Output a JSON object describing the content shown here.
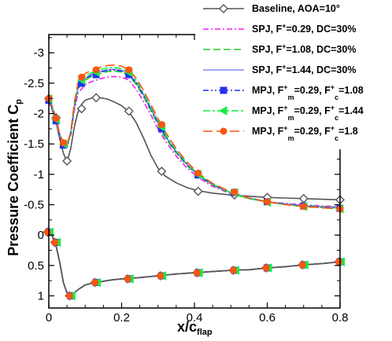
{
  "chart_data": {
    "type": "line",
    "title": "",
    "xlabel": {
      "base": "x/c",
      "sub": "flap"
    },
    "ylabel": {
      "base": "Pressure Coefficient  C",
      "sub": "p"
    },
    "xlim": [
      0,
      0.8
    ],
    "ylim": [
      1.2,
      -3.3
    ],
    "y_inverted": true,
    "grid": false,
    "legend_position": "top-right",
    "x_ticks": [
      0,
      0.2,
      0.4,
      0.6,
      0.8
    ],
    "x_tick_labels": [
      "0",
      "0.2",
      "0.4",
      "0.6",
      "0.8"
    ],
    "y_ticks": [
      -3,
      -2.5,
      -2,
      -1.5,
      -1,
      -0.5,
      0,
      0.5,
      1
    ],
    "y_tick_labels": [
      "-3",
      "-2.5",
      "-2",
      "-1.5",
      "-1",
      "-0.5",
      "0",
      "0.5",
      "1"
    ],
    "series": [
      {
        "legend": [
          {
            "t": "Baseline, AOA=10°"
          }
        ],
        "color": "#555555",
        "dash": "",
        "width": 1.6,
        "marker": "diamond",
        "marker_fill": "none",
        "x": [
          0,
          0.01,
          0.02,
          0.03,
          0.04,
          0.05,
          0.06,
          0.07,
          0.08,
          0.09,
          0.1,
          0.12,
          0.14,
          0.16,
          0.18,
          0.2,
          0.22,
          0.24,
          0.26,
          0.28,
          0.3,
          0.32,
          0.35,
          0.38,
          0.41,
          0.45,
          0.5,
          0.55,
          0.6,
          0.65,
          0.7,
          0.75,
          0.8
        ],
        "y": [
          -2.25,
          -2.05,
          -1.85,
          -1.58,
          -1.35,
          -1.2,
          -1.42,
          -1.78,
          -2.02,
          -2.15,
          -2.22,
          -2.26,
          -2.26,
          -2.24,
          -2.19,
          -2.13,
          -2.03,
          -1.85,
          -1.6,
          -1.32,
          -1.1,
          -0.97,
          -0.86,
          -0.78,
          -0.73,
          -0.69,
          -0.66,
          -0.64,
          -0.62,
          -0.61,
          -0.6,
          -0.59,
          -0.58
        ],
        "marker_x": [
          0,
          0.02,
          0.05,
          0.09,
          0.13,
          0.22,
          0.31,
          0.41,
          0.51,
          0.6,
          0.7,
          0.8
        ],
        "marker_y": [
          -2.25,
          -1.93,
          -1.22,
          -2.08,
          -2.26,
          -2.04,
          -1.05,
          -0.72,
          -0.66,
          -0.62,
          -0.6,
          -0.58
        ]
      },
      {
        "legend": [
          {
            "t": "SPJ, F"
          },
          {
            "t": "+",
            "sup": true
          },
          {
            "t": "=0.29, DC=30%"
          }
        ],
        "color": "#ee22ee",
        "dash": "7,3,2,3",
        "width": 1.6,
        "marker": "none",
        "marker_fill": "",
        "x": [
          0,
          0.01,
          0.02,
          0.03,
          0.04,
          0.05,
          0.06,
          0.07,
          0.08,
          0.1,
          0.12,
          0.14,
          0.16,
          0.18,
          0.2,
          0.22,
          0.24,
          0.26,
          0.28,
          0.3,
          0.32,
          0.35,
          0.38,
          0.41,
          0.45,
          0.5,
          0.55,
          0.6,
          0.65,
          0.7,
          0.75,
          0.8
        ],
        "y": [
          -2.2,
          -2.05,
          -1.85,
          -1.62,
          -1.5,
          -1.47,
          -1.65,
          -2.05,
          -2.33,
          -2.48,
          -2.53,
          -2.57,
          -2.6,
          -2.61,
          -2.6,
          -2.55,
          -2.4,
          -2.2,
          -1.98,
          -1.75,
          -1.55,
          -1.3,
          -1.1,
          -0.95,
          -0.8,
          -0.68,
          -0.6,
          -0.55,
          -0.52,
          -0.5,
          -0.48,
          -0.47
        ]
      },
      {
        "legend": [
          {
            "t": "SPJ, F"
          },
          {
            "t": "+",
            "sup": true
          },
          {
            "t": "=1.08, DC=30%"
          }
        ],
        "color": "#22cc22",
        "dash": "9,4",
        "width": 1.6,
        "marker": "none",
        "marker_fill": "",
        "x": [
          0,
          0.01,
          0.02,
          0.03,
          0.04,
          0.05,
          0.06,
          0.07,
          0.08,
          0.1,
          0.12,
          0.14,
          0.16,
          0.18,
          0.2,
          0.22,
          0.24,
          0.26,
          0.28,
          0.3,
          0.32,
          0.35,
          0.38,
          0.41,
          0.45,
          0.5,
          0.55,
          0.6,
          0.65,
          0.7,
          0.75,
          0.8
        ],
        "y": [
          -2.25,
          -2.08,
          -1.88,
          -1.64,
          -1.5,
          -1.46,
          -1.66,
          -2.1,
          -2.4,
          -2.55,
          -2.62,
          -2.66,
          -2.69,
          -2.7,
          -2.68,
          -2.62,
          -2.48,
          -2.28,
          -2.05,
          -1.82,
          -1.6,
          -1.35,
          -1.14,
          -0.98,
          -0.82,
          -0.69,
          -0.6,
          -0.55,
          -0.51,
          -0.49,
          -0.47,
          -0.46
        ]
      },
      {
        "legend": [
          {
            "t": "SPJ, F"
          },
          {
            "t": "+",
            "sup": true
          },
          {
            "t": "=1.44, DC=30%"
          }
        ],
        "color": "#8888ee",
        "dash": "",
        "width": 1.6,
        "marker": "none",
        "marker_fill": "",
        "x": [
          0,
          0.01,
          0.02,
          0.03,
          0.04,
          0.05,
          0.06,
          0.07,
          0.08,
          0.1,
          0.12,
          0.14,
          0.16,
          0.18,
          0.2,
          0.22,
          0.24,
          0.26,
          0.28,
          0.3,
          0.32,
          0.35,
          0.38,
          0.41,
          0.45,
          0.5,
          0.55,
          0.6,
          0.65,
          0.7,
          0.75,
          0.8
        ],
        "y": [
          -2.25,
          -2.1,
          -1.9,
          -1.66,
          -1.52,
          -1.48,
          -1.68,
          -2.12,
          -2.42,
          -2.58,
          -2.65,
          -2.69,
          -2.72,
          -2.73,
          -2.71,
          -2.65,
          -2.51,
          -2.31,
          -2.08,
          -1.85,
          -1.63,
          -1.37,
          -1.16,
          -0.99,
          -0.83,
          -0.7,
          -0.61,
          -0.55,
          -0.51,
          -0.48,
          -0.46,
          -0.45
        ]
      },
      {
        "legend": [
          {
            "t": "MPJ, F"
          },
          {
            "t": "+",
            "sup": true
          },
          {
            "t": "m",
            "sub": true
          },
          {
            "t": "=0.29, F"
          },
          {
            "t": "+",
            "sup": true
          },
          {
            "t": "c",
            "sub": true
          },
          {
            "t": "=1.08"
          }
        ],
        "color": "#2233ee",
        "dash": "7,3,2,3,2,3",
        "width": 1.6,
        "marker": "square",
        "marker_fill": "#2233ee",
        "x": [
          0,
          0.01,
          0.02,
          0.03,
          0.04,
          0.05,
          0.06,
          0.07,
          0.08,
          0.1,
          0.12,
          0.14,
          0.16,
          0.18,
          0.2,
          0.22,
          0.24,
          0.26,
          0.28,
          0.3,
          0.32,
          0.35,
          0.38,
          0.41,
          0.45,
          0.5,
          0.55,
          0.6,
          0.65,
          0.7,
          0.75,
          0.8
        ],
        "y": [
          -2.22,
          -2.08,
          -1.88,
          -1.62,
          -1.48,
          -1.45,
          -1.65,
          -2.1,
          -2.42,
          -2.58,
          -2.64,
          -2.68,
          -2.71,
          -2.72,
          -2.7,
          -2.64,
          -2.5,
          -2.3,
          -2.08,
          -1.85,
          -1.63,
          -1.37,
          -1.16,
          -0.99,
          -0.83,
          -0.7,
          -0.61,
          -0.55,
          -0.51,
          -0.48,
          -0.46,
          -0.44
        ],
        "marker_x": [
          0,
          0.02,
          0.04,
          0.09,
          0.13,
          0.22,
          0.31,
          0.41,
          0.51,
          0.6,
          0.7,
          0.8
        ],
        "marker_y": [
          -2.22,
          -1.88,
          -1.48,
          -2.5,
          -2.64,
          -2.64,
          -1.75,
          -0.99,
          -0.7,
          -0.55,
          -0.48,
          -0.44
        ]
      },
      {
        "legend": [
          {
            "t": "MPJ, F"
          },
          {
            "t": "+",
            "sup": true
          },
          {
            "t": "m",
            "sub": true
          },
          {
            "t": "=0.29, F"
          },
          {
            "t": "+",
            "sup": true
          },
          {
            "t": "c",
            "sub": true
          },
          {
            "t": "=1.44"
          }
        ],
        "color": "#11ee44",
        "dash": "9,3,3,3",
        "width": 1.6,
        "marker": "triangle-left",
        "marker_fill": "#11ee44",
        "x": [
          0,
          0.01,
          0.02,
          0.03,
          0.04,
          0.05,
          0.06,
          0.07,
          0.08,
          0.1,
          0.12,
          0.14,
          0.16,
          0.18,
          0.2,
          0.22,
          0.24,
          0.26,
          0.28,
          0.3,
          0.32,
          0.35,
          0.38,
          0.41,
          0.45,
          0.5,
          0.55,
          0.6,
          0.65,
          0.7,
          0.75,
          0.8
        ],
        "y": [
          -2.24,
          -2.1,
          -1.9,
          -1.64,
          -1.5,
          -1.47,
          -1.67,
          -2.14,
          -2.46,
          -2.62,
          -2.68,
          -2.72,
          -2.75,
          -2.76,
          -2.74,
          -2.68,
          -2.54,
          -2.34,
          -2.12,
          -1.88,
          -1.66,
          -1.39,
          -1.18,
          -1.0,
          -0.84,
          -0.7,
          -0.6,
          -0.54,
          -0.5,
          -0.47,
          -0.45,
          -0.43
        ],
        "marker_x": [
          0,
          0.02,
          0.04,
          0.09,
          0.13,
          0.22,
          0.31,
          0.41,
          0.51,
          0.6,
          0.7,
          0.8
        ],
        "marker_y": [
          -2.24,
          -1.9,
          -1.5,
          -2.55,
          -2.68,
          -2.68,
          -1.78,
          -1.0,
          -0.7,
          -0.54,
          -0.47,
          -0.43
        ]
      },
      {
        "legend": [
          {
            "t": "MPJ, F"
          },
          {
            "t": "+",
            "sup": true
          },
          {
            "t": "m",
            "sub": true
          },
          {
            "t": "=0.29, F"
          },
          {
            "t": "+",
            "sup": true
          },
          {
            "t": "c",
            "sub": true
          },
          {
            "t": "=1.8"
          }
        ],
        "color": "#ff5511",
        "dash": "12,5",
        "width": 1.6,
        "marker": "circle",
        "marker_fill": "#ff5511",
        "x": [
          0,
          0.01,
          0.02,
          0.03,
          0.04,
          0.05,
          0.06,
          0.07,
          0.08,
          0.1,
          0.12,
          0.14,
          0.16,
          0.18,
          0.2,
          0.22,
          0.24,
          0.26,
          0.28,
          0.3,
          0.32,
          0.35,
          0.38,
          0.41,
          0.45,
          0.5,
          0.55,
          0.6,
          0.65,
          0.7,
          0.75,
          0.8
        ],
        "y": [
          -2.25,
          -2.12,
          -1.92,
          -1.66,
          -1.52,
          -1.49,
          -1.7,
          -2.18,
          -2.5,
          -2.66,
          -2.72,
          -2.76,
          -2.79,
          -2.8,
          -2.78,
          -2.72,
          -2.58,
          -2.38,
          -2.15,
          -1.92,
          -1.7,
          -1.42,
          -1.2,
          -1.02,
          -0.85,
          -0.71,
          -0.61,
          -0.55,
          -0.5,
          -0.47,
          -0.45,
          -0.43
        ],
        "marker_x": [
          0,
          0.02,
          0.04,
          0.09,
          0.13,
          0.22,
          0.31,
          0.41,
          0.51,
          0.6,
          0.7,
          0.8
        ],
        "marker_y": [
          -2.25,
          -1.92,
          -1.52,
          -2.6,
          -2.72,
          -2.72,
          -1.82,
          -1.02,
          -0.71,
          -0.55,
          -0.47,
          -0.43
        ]
      }
    ],
    "lower_surface": {
      "x": [
        0,
        0.01,
        0.02,
        0.03,
        0.04,
        0.05,
        0.06,
        0.08,
        0.1,
        0.13,
        0.17,
        0.2,
        0.25,
        0.3,
        0.35,
        0.4,
        0.45,
        0.5,
        0.55,
        0.6,
        0.65,
        0.7,
        0.75,
        0.8
      ],
      "y": [
        -0.05,
        0.02,
        0.18,
        0.45,
        0.78,
        0.95,
        1.0,
        0.9,
        0.82,
        0.78,
        0.74,
        0.72,
        0.7,
        0.67,
        0.64,
        0.62,
        0.6,
        0.58,
        0.57,
        0.54,
        0.52,
        0.49,
        0.47,
        0.44
      ],
      "marker_x": [
        0,
        0.02,
        0.06,
        0.13,
        0.22,
        0.31,
        0.41,
        0.51,
        0.6,
        0.7,
        0.8
      ],
      "marker_y": [
        -0.05,
        0.12,
        1.0,
        0.78,
        0.72,
        0.67,
        0.62,
        0.58,
        0.54,
        0.49,
        0.44
      ]
    }
  }
}
